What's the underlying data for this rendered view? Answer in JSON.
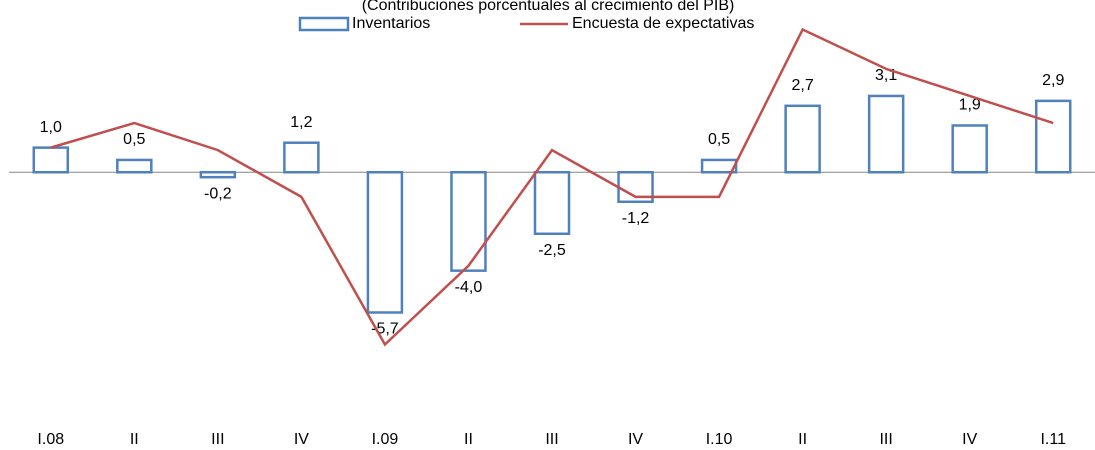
{
  "chart_data": {
    "type": "bar",
    "subtitle": "(Contribuciones porcentuales al crecimiento del PIB)",
    "categories": [
      "I.08",
      "II",
      "III",
      "IV",
      "I.09",
      "II",
      "III",
      "IV",
      "I.10",
      "II",
      "III",
      "IV",
      "I.11"
    ],
    "series": [
      {
        "name": "Inventarios",
        "type": "bar",
        "color": "#4f81bd",
        "values": [
          1.0,
          0.5,
          -0.2,
          1.2,
          -5.7,
          -4.0,
          -2.5,
          -1.2,
          0.5,
          2.7,
          3.1,
          1.9,
          2.9
        ],
        "value_labels": [
          "1,0",
          "0,5",
          "-0,2",
          "1,2",
          "-5,7",
          "-4,0",
          "-2,5",
          "-1,2",
          "0,5",
          "2,7",
          "3,1",
          "1,9",
          "2,9"
        ]
      },
      {
        "name": "Encuesta de expectativas",
        "type": "line",
        "color": "#c0504d",
        "values": [
          1.0,
          2.0,
          0.9,
          -1.0,
          -7.0,
          -3.8,
          0.9,
          -1.0,
          -1.0,
          5.8,
          4.2,
          3.1,
          2.0
        ]
      }
    ],
    "ylim": [
      -9.5,
      7
    ]
  }
}
